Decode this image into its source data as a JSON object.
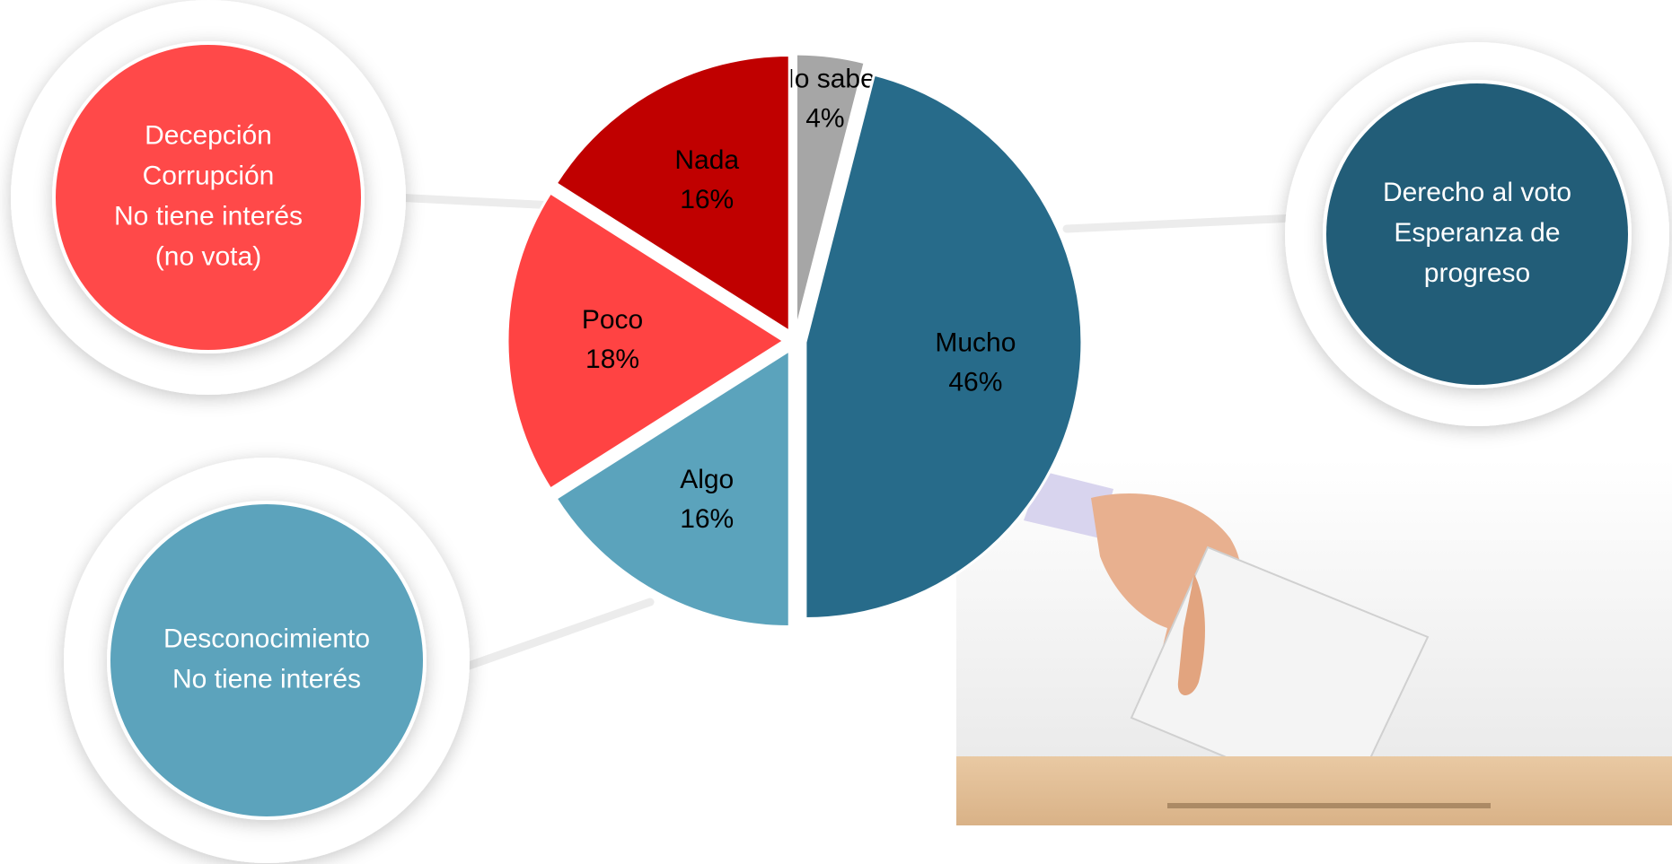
{
  "chart_data": {
    "type": "pie",
    "categories": [
      "No sabe",
      "Mucho",
      "Algo",
      "Poco",
      "Nada"
    ],
    "values": [
      4,
      46,
      16,
      18,
      16
    ],
    "value_labels": [
      "4%",
      "46%",
      "16%",
      "18%",
      "16%"
    ],
    "colors": [
      "#a6a6a6",
      "#276b8a",
      "#5ba3bc",
      "#ff4343",
      "#c00000"
    ],
    "callouts": [
      {
        "lines": [
          "Decepción",
          "Corrupción",
          "No tiene interés",
          "(no vota)"
        ],
        "color": "#ff4a4a"
      },
      {
        "lines": [
          "Derecho al voto",
          "Esperanza de",
          "progreso"
        ],
        "color": "#245d78"
      },
      {
        "lines": [
          "Desconocimiento",
          "No tiene interés"
        ],
        "color": "#5ba3bc"
      }
    ]
  }
}
